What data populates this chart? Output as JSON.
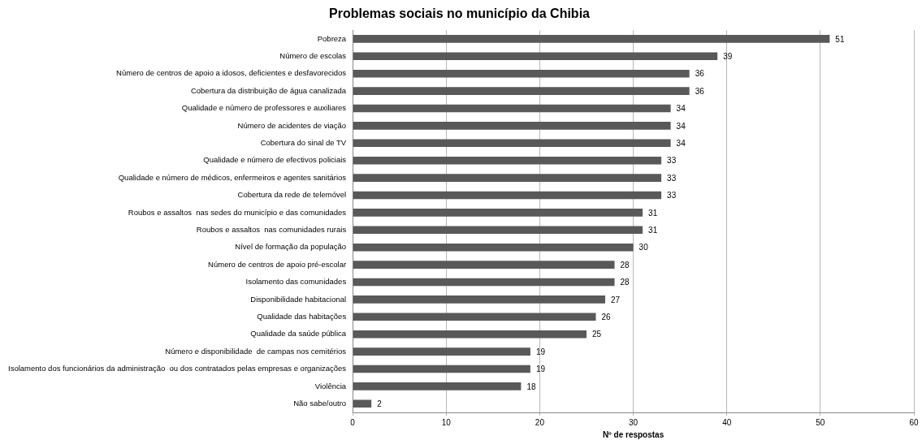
{
  "chart_data": {
    "type": "bar",
    "orientation": "horizontal",
    "title": "Problemas sociais no município da Chibia",
    "xlabel": "Nº de respostas",
    "categories": [
      "Pobreza",
      "Número de escolas",
      "Número de centros de apoio a idosos, deficientes e desfavorecidos",
      "Cobertura da distribuição de água canalizada",
      "Qualidade e número de professores e auxiliares",
      "Número de acidentes de viação",
      "Cobertura do sinal de TV",
      "Qualidade e número de efectivos policiais",
      "Qualidade e número de médicos, enfermeiros e agentes sanitários",
      "Cobertura da rede de telemóvel",
      "Roubos e assaltos  nas sedes do município e das comunidades",
      "Roubos e assaltos  nas comunidades rurais",
      "Nível de formação da população",
      "Número de centros de apoio pré-escolar",
      "Isolamento das comunidades",
      "Disponibilidade habitacional",
      "Qualidade das habitações",
      "Qualidade da saúde pública",
      "Número e disponibilidade  de campas nos cemitérios",
      "Isolamento dos funcionários da administração  ou dos contratados pelas empresas e organizações",
      "Violência",
      "Não sabe/outro"
    ],
    "values": [
      51,
      39,
      36,
      36,
      34,
      34,
      34,
      33,
      33,
      33,
      31,
      31,
      30,
      28,
      28,
      27,
      26,
      25,
      19,
      19,
      18,
      2
    ],
    "color": "#595959",
    "xlim": [
      0,
      60
    ],
    "xticks": [
      0,
      10,
      20,
      30,
      40,
      50,
      60
    ],
    "grid": "x",
    "data_labels": true
  }
}
